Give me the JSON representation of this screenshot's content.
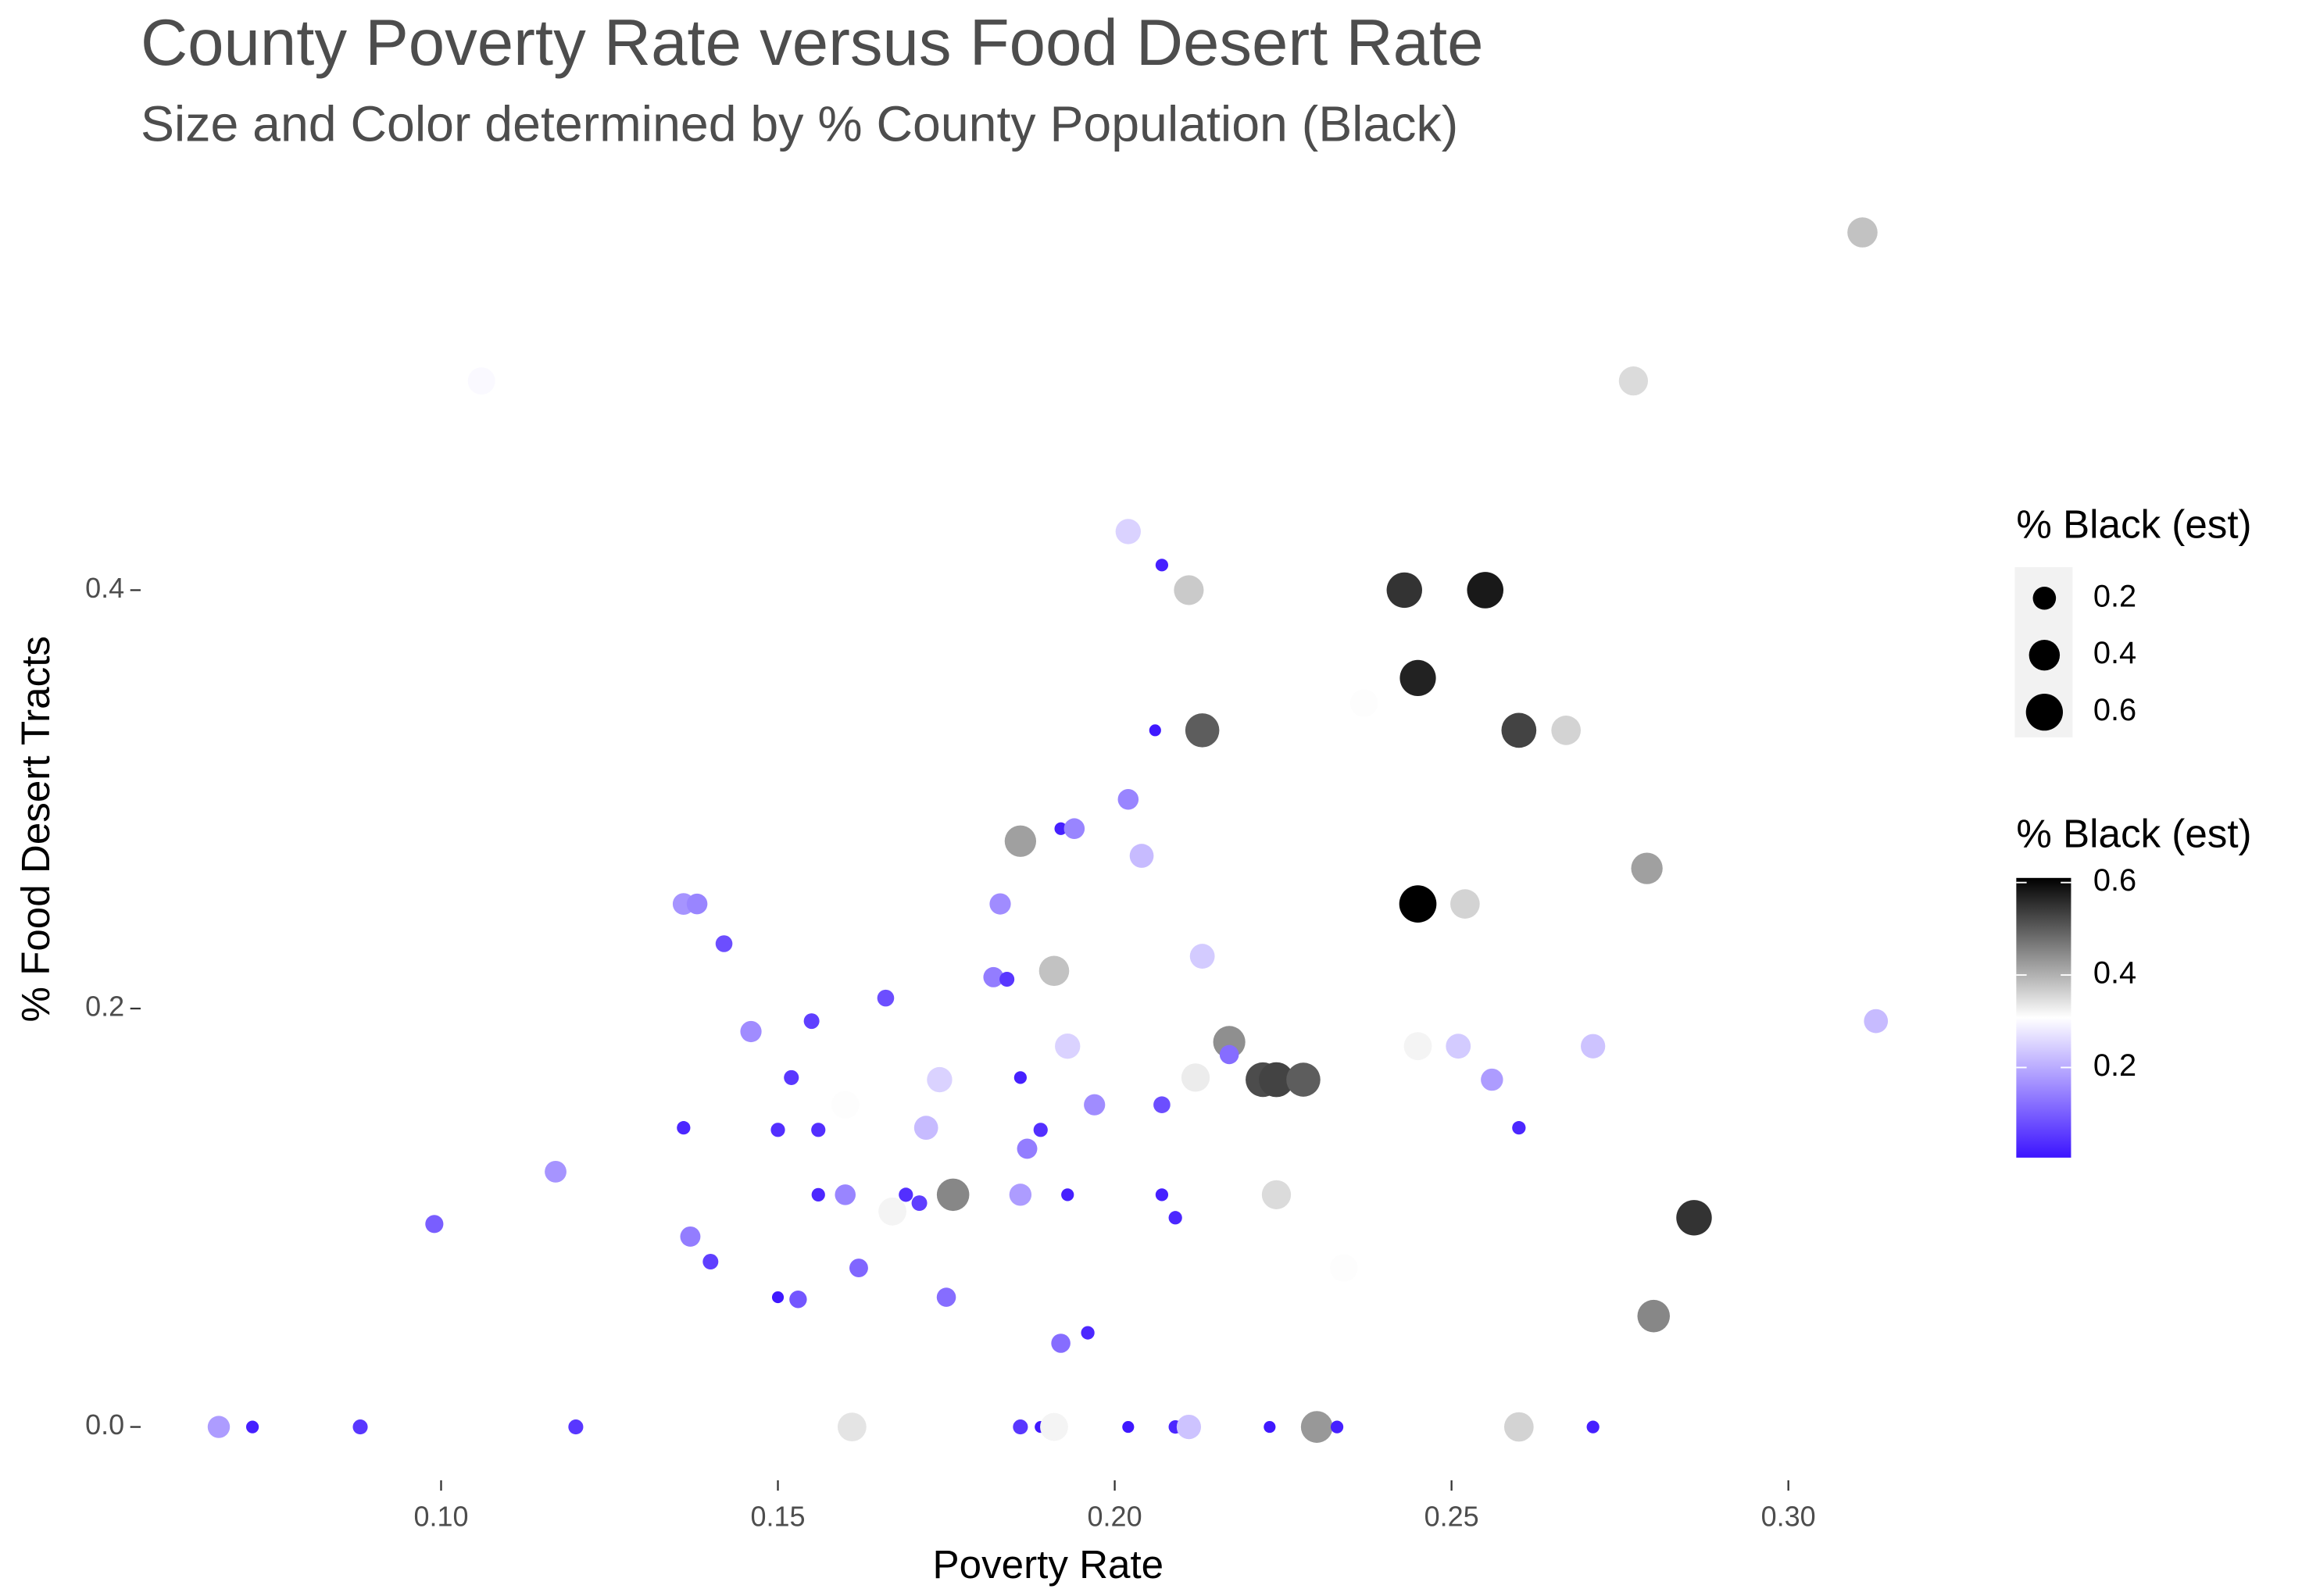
{
  "chart_data": {
    "type": "scatter",
    "title": "County Poverty Rate versus Food Desert Rate",
    "subtitle": "Size and Color determined by % County Population (Black)",
    "x_label": "Poverty Rate",
    "y_label": "% Food Desert Tracts",
    "xlim": [
      0.0554,
      0.329
    ],
    "xticks": [
      {
        "value": 0.1,
        "label": "0.10"
      },
      {
        "value": 0.15,
        "label": "0.15"
      },
      {
        "value": 0.2,
        "label": "0.20"
      },
      {
        "value": 0.25,
        "label": "0.25"
      },
      {
        "value": 0.3,
        "label": "0.30"
      }
    ],
    "ylim": [
      -0.0255,
      0.59
    ],
    "yticks": [
      {
        "value": 0,
        "label": "0.0"
      },
      0.2,
      0.4
    ],
    "grid": false,
    "x": [
      0.311,
      0.277,
      0.106,
      0.202,
      0.207,
      0.211,
      0.243,
      0.255,
      0.245,
      0.237,
      0.206,
      0.213,
      0.26,
      0.267,
      0.202,
      0.192,
      0.194,
      0.204,
      0.186,
      0.279,
      0.136,
      0.138,
      0.183,
      0.245,
      0.252,
      0.142,
      0.213,
      0.191,
      0.182,
      0.184,
      0.166,
      0.313,
      0.155,
      0.146,
      0.217,
      0.193,
      0.245,
      0.251,
      0.271,
      0.217,
      0.152,
      0.186,
      0.174,
      0.212,
      0.222,
      0.224,
      0.228,
      0.256,
      0.16,
      0.197,
      0.207,
      0.136,
      0.15,
      0.156,
      0.172,
      0.189,
      0.26,
      0.187,
      0.117,
      0.156,
      0.16,
      0.169,
      0.171,
      0.176,
      0.186,
      0.193,
      0.207,
      0.224,
      0.167,
      0.209,
      0.286,
      0.099,
      0.137,
      0.14,
      0.162,
      0.234,
      0.15,
      0.153,
      0.175,
      0.28,
      0.196,
      0.192,
      0.067,
      0.072,
      0.088,
      0.12,
      0.161,
      0.186,
      0.189,
      0.191,
      0.202,
      0.209,
      0.21,
      0.211,
      0.223,
      0.23,
      0.233,
      0.26,
      0.271
    ],
    "y": [
      0.571,
      0.5,
      0.5,
      0.428,
      0.412,
      0.4,
      0.4,
      0.4,
      0.358,
      0.346,
      0.333,
      0.333,
      0.333,
      0.333,
      0.3,
      0.286,
      0.286,
      0.273,
      0.28,
      0.267,
      0.25,
      0.25,
      0.25,
      0.25,
      0.25,
      0.231,
      0.225,
      0.218,
      0.215,
      0.214,
      0.205,
      0.194,
      0.194,
      0.189,
      0.184,
      0.182,
      0.182,
      0.182,
      0.182,
      0.178,
      0.167,
      0.167,
      0.166,
      0.167,
      0.166,
      0.166,
      0.166,
      0.166,
      0.154,
      0.154,
      0.154,
      0.143,
      0.142,
      0.142,
      0.143,
      0.142,
      0.143,
      0.133,
      0.122,
      0.111,
      0.111,
      0.111,
      0.107,
      0.111,
      0.111,
      0.111,
      0.111,
      0.111,
      0.103,
      0.1,
      0.1,
      0.097,
      0.091,
      0.079,
      0.076,
      0.076,
      0.062,
      0.061,
      0.062,
      0.053,
      0.045,
      0.04,
      0,
      0,
      0,
      0,
      0,
      0,
      0,
      0,
      0,
      0,
      0,
      0,
      0,
      0,
      0,
      0,
      0
    ],
    "size": [
      0.38,
      0.35,
      0.3,
      0.25,
      0.02,
      0.37,
      0.55,
      0.58,
      0.57,
      0.31,
      0.01,
      0.5,
      0.53,
      0.36,
      0.15,
      0.02,
      0.15,
      0.22,
      0.42,
      0.42,
      0.17,
      0.15,
      0.16,
      0.61,
      0.36,
      0.08,
      0.24,
      0.38,
      0.14,
      0.05,
      0.08,
      0.22,
      0.06,
      0.16,
      0.44,
      0.25,
      0.32,
      0.24,
      0.23,
      0.12,
      0.05,
      0.02,
      0.25,
      0.33,
      0.52,
      0.53,
      0.5,
      0.18,
      0.31,
      0.16,
      0.08,
      0.03,
      0.04,
      0.04,
      0.22,
      0.04,
      0.03,
      0.14,
      0.17,
      0.03,
      0.15,
      0.04,
      0.06,
      0.45,
      0.18,
      0.02,
      0.02,
      0.35,
      0.32,
      0.03,
      0.55,
      0.1,
      0.14,
      0.06,
      0.11,
      0.31,
      0.01,
      0.09,
      0.12,
      0.45,
      0.03,
      0.12,
      0.18,
      0.02,
      0.05,
      0.05,
      0.34,
      0.05,
      0.01,
      0.32,
      0.01,
      0.03,
      0.01,
      0.23,
      0.01,
      0.43,
      0.02,
      0.36,
      0.02
    ],
    "size_legend": {
      "title": "% Black (est)",
      "ticks": [
        0.2,
        0.4,
        0.6
      ]
    },
    "color_legend": {
      "title": "% Black (est)",
      "ticks": [
        0.2,
        0.4,
        0.6
      ],
      "lim": [
        0.005,
        0.61
      ],
      "colors": [
        "#3c14ff",
        "#ffffff",
        "#000000"
      ]
    }
  }
}
